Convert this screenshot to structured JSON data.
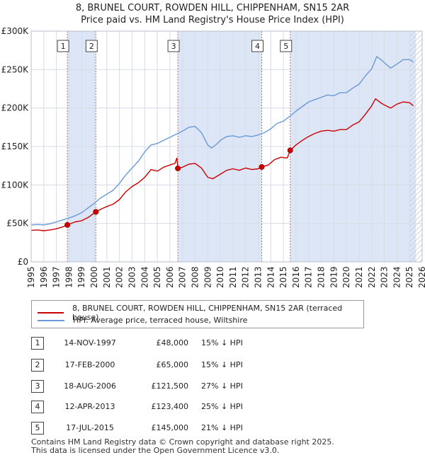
{
  "title": {
    "line1": "8, BRUNEL COURT, ROWDEN HILL, CHIPPENHAM, SN15 2AR",
    "line2": "Price paid vs. HM Land Registry's House Price Index (HPI)"
  },
  "colors": {
    "property": "#cc0000",
    "hpi": "#6a9ad6",
    "shade": "#dde6f7",
    "grid": "#d6dce4",
    "vline": "#e06060"
  },
  "chart_data": {
    "type": "line",
    "xlim": [
      1995,
      2026
    ],
    "ylim": [
      0,
      300000
    ],
    "y_ticks": [
      {
        "value": 0,
        "label": "£0"
      },
      {
        "value": 50000,
        "label": "£50K"
      },
      {
        "value": 100000,
        "label": "£100K"
      },
      {
        "value": 150000,
        "label": "£150K"
      },
      {
        "value": 200000,
        "label": "£200K"
      },
      {
        "value": 250000,
        "label": "£250K"
      },
      {
        "value": 300000,
        "label": "£300K"
      }
    ],
    "x_ticks": [
      "1995",
      "1996",
      "1997",
      "1998",
      "1999",
      "2000",
      "2001",
      "2002",
      "2003",
      "2004",
      "2005",
      "2006",
      "2007",
      "2008",
      "2009",
      "2010",
      "2011",
      "2012",
      "2013",
      "2014",
      "2015",
      "2016",
      "2017",
      "2018",
      "2019",
      "2020",
      "2021",
      "2022",
      "2023",
      "2024",
      "2025",
      "2026"
    ],
    "shaded_ranges": [
      [
        1997.87,
        2000.13
      ],
      [
        2006.63,
        2013.28
      ],
      [
        2015.54,
        2025.5
      ]
    ],
    "hatch_from": 2025.0,
    "sales": [
      {
        "id": "1",
        "x": 1997.87,
        "price": 48000
      },
      {
        "id": "2",
        "x": 2000.13,
        "price": 65000
      },
      {
        "id": "3",
        "x": 2006.63,
        "price": 121500
      },
      {
        "id": "4",
        "x": 2013.28,
        "price": 123400
      },
      {
        "id": "5",
        "x": 2015.54,
        "price": 145000
      }
    ],
    "series": [
      {
        "name": "8, BRUNEL COURT, ROWDEN HILL, CHIPPENHAM, SN15 2AR (terraced house)",
        "color": "#cc0000",
        "points": [
          [
            1995.0,
            41000
          ],
          [
            1995.5,
            41500
          ],
          [
            1996.0,
            40500
          ],
          [
            1996.5,
            41500
          ],
          [
            1997.0,
            43000
          ],
          [
            1997.5,
            45500
          ],
          [
            1997.87,
            48000
          ],
          [
            1998.5,
            52000
          ],
          [
            1999.0,
            53500
          ],
          [
            1999.5,
            57500
          ],
          [
            2000.13,
            65000
          ],
          [
            2000.6,
            69000
          ],
          [
            2001.0,
            72000
          ],
          [
            2001.5,
            75000
          ],
          [
            2002.0,
            81000
          ],
          [
            2002.5,
            91000
          ],
          [
            2003.0,
            98000
          ],
          [
            2003.5,
            103000
          ],
          [
            2004.0,
            110000
          ],
          [
            2004.5,
            120000
          ],
          [
            2005.0,
            118000
          ],
          [
            2005.5,
            123000
          ],
          [
            2006.0,
            126000
          ],
          [
            2006.4,
            128000
          ],
          [
            2006.55,
            135000
          ],
          [
            2006.63,
            121500
          ],
          [
            2007.0,
            123000
          ],
          [
            2007.5,
            127000
          ],
          [
            2008.0,
            128000
          ],
          [
            2008.5,
            122000
          ],
          [
            2009.0,
            110000
          ],
          [
            2009.4,
            108000
          ],
          [
            2010.0,
            114000
          ],
          [
            2010.5,
            119000
          ],
          [
            2011.0,
            121000
          ],
          [
            2011.5,
            119000
          ],
          [
            2012.0,
            122000
          ],
          [
            2012.5,
            120000
          ],
          [
            2013.0,
            121000
          ],
          [
            2013.28,
            123400
          ],
          [
            2013.8,
            126000
          ],
          [
            2014.3,
            133000
          ],
          [
            2014.8,
            136000
          ],
          [
            2015.3,
            135000
          ],
          [
            2015.54,
            145000
          ],
          [
            2016.0,
            152000
          ],
          [
            2016.5,
            158000
          ],
          [
            2017.0,
            163000
          ],
          [
            2017.5,
            167000
          ],
          [
            2018.0,
            170000
          ],
          [
            2018.5,
            171000
          ],
          [
            2019.0,
            170000
          ],
          [
            2019.5,
            172000
          ],
          [
            2020.0,
            172000
          ],
          [
            2020.5,
            178000
          ],
          [
            2021.0,
            182000
          ],
          [
            2021.5,
            192000
          ],
          [
            2022.0,
            203000
          ],
          [
            2022.3,
            212000
          ],
          [
            2022.7,
            207000
          ],
          [
            2023.0,
            204000
          ],
          [
            2023.5,
            200000
          ],
          [
            2024.0,
            205000
          ],
          [
            2024.5,
            208000
          ],
          [
            2025.0,
            207000
          ],
          [
            2025.3,
            203000
          ]
        ]
      },
      {
        "name": "HPI: Average price, terraced house, Wiltshire",
        "color": "#6a9ad6",
        "points": [
          [
            1995.0,
            48000
          ],
          [
            1995.5,
            48500
          ],
          [
            1996.0,
            48000
          ],
          [
            1996.5,
            49500
          ],
          [
            1997.0,
            52000
          ],
          [
            1997.5,
            54500
          ],
          [
            1998.0,
            57000
          ],
          [
            1998.5,
            60000
          ],
          [
            1999.0,
            64000
          ],
          [
            1999.5,
            70000
          ],
          [
            2000.0,
            76000
          ],
          [
            2000.5,
            83000
          ],
          [
            2001.0,
            88000
          ],
          [
            2001.5,
            93000
          ],
          [
            2002.0,
            102000
          ],
          [
            2002.5,
            113000
          ],
          [
            2003.0,
            122000
          ],
          [
            2003.5,
            131000
          ],
          [
            2004.0,
            143000
          ],
          [
            2004.5,
            152000
          ],
          [
            2005.0,
            154000
          ],
          [
            2005.5,
            158000
          ],
          [
            2006.0,
            162000
          ],
          [
            2006.5,
            166000
          ],
          [
            2007.0,
            170000
          ],
          [
            2007.5,
            175000
          ],
          [
            2008.0,
            176000
          ],
          [
            2008.5,
            168000
          ],
          [
            2009.0,
            152000
          ],
          [
            2009.3,
            148000
          ],
          [
            2009.7,
            153000
          ],
          [
            2010.0,
            158000
          ],
          [
            2010.5,
            163000
          ],
          [
            2011.0,
            164000
          ],
          [
            2011.5,
            162000
          ],
          [
            2012.0,
            164000
          ],
          [
            2012.5,
            163000
          ],
          [
            2013.0,
            165000
          ],
          [
            2013.5,
            168000
          ],
          [
            2014.0,
            173000
          ],
          [
            2014.5,
            180000
          ],
          [
            2015.0,
            183000
          ],
          [
            2015.5,
            189000
          ],
          [
            2016.0,
            196000
          ],
          [
            2016.5,
            202000
          ],
          [
            2017.0,
            208000
          ],
          [
            2017.5,
            211000
          ],
          [
            2018.0,
            214000
          ],
          [
            2018.5,
            217000
          ],
          [
            2019.0,
            216000
          ],
          [
            2019.5,
            220000
          ],
          [
            2020.0,
            220000
          ],
          [
            2020.5,
            226000
          ],
          [
            2021.0,
            231000
          ],
          [
            2021.5,
            242000
          ],
          [
            2022.0,
            251000
          ],
          [
            2022.4,
            267000
          ],
          [
            2022.8,
            262000
          ],
          [
            2023.0,
            259000
          ],
          [
            2023.5,
            252000
          ],
          [
            2024.0,
            257000
          ],
          [
            2024.5,
            263000
          ],
          [
            2025.0,
            263000
          ],
          [
            2025.3,
            260000
          ]
        ]
      }
    ]
  },
  "legend": {
    "property_label": "8, BRUNEL COURT, ROWDEN HILL, CHIPPENHAM, SN15 2AR (terraced house)",
    "hpi_label": "HPI: Average price, terraced house, Wiltshire"
  },
  "sales_table": [
    {
      "num": "1",
      "date": "14-NOV-1997",
      "price": "£48,000",
      "hpi": "15% ↓ HPI"
    },
    {
      "num": "2",
      "date": "17-FEB-2000",
      "price": "£65,000",
      "hpi": "15% ↓ HPI"
    },
    {
      "num": "3",
      "date": "18-AUG-2006",
      "price": "£121,500",
      "hpi": "27% ↓ HPI"
    },
    {
      "num": "4",
      "date": "12-APR-2013",
      "price": "£123,400",
      "hpi": "25% ↓ HPI"
    },
    {
      "num": "5",
      "date": "17-JUL-2015",
      "price": "£145,000",
      "hpi": "21% ↓ HPI"
    }
  ],
  "footer": {
    "line1": "Contains HM Land Registry data © Crown copyright and database right 2025.",
    "line2": "This data is licensed under the Open Government Licence v3.0."
  }
}
